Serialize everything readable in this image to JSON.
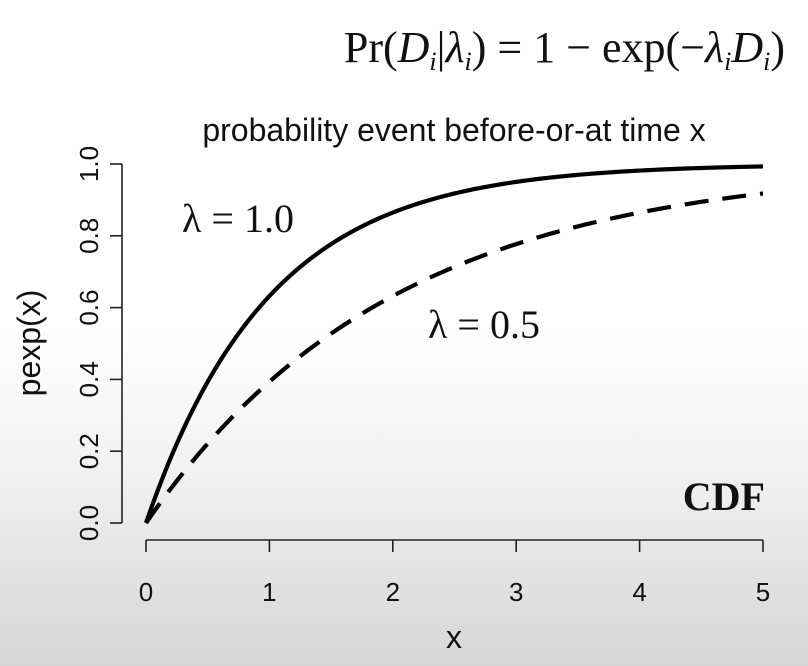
{
  "chart_data": {
    "type": "line",
    "formula": {
      "prefix": "Pr(",
      "d": "D",
      "sub_i_1": "i",
      "bar": "|",
      "lambda1": "λ",
      "sub_i_2": "i",
      "mid": ") = 1 − exp(−",
      "lambda2": "λ",
      "sub_i_3": "i",
      "d2": "D",
      "sub_i_4": "i",
      "suffix": ")"
    },
    "title": "probability event before-or-at time x",
    "xlabel": "x",
    "ylabel": "pexp(x)",
    "xlim": [
      0,
      5
    ],
    "ylim": [
      0,
      1
    ],
    "x_ticks": [
      0,
      1,
      2,
      3,
      4,
      5
    ],
    "x_tick_labels": [
      "0",
      "1",
      "2",
      "3",
      "4",
      "5"
    ],
    "y_ticks": [
      0,
      0.2,
      0.4,
      0.6,
      0.8,
      1.0
    ],
    "y_tick_labels": [
      "0.0",
      "0.2",
      "0.4",
      "0.6",
      "0.8",
      "1.0"
    ],
    "grid": false,
    "corner_label": "CDF",
    "series": [
      {
        "name": "λ = 1.0",
        "rate": 1.0,
        "style": "solid",
        "color": "#000000",
        "x": [
          0,
          0.25,
          0.5,
          0.75,
          1.0,
          1.5,
          2.0,
          2.5,
          3.0,
          3.5,
          4.0,
          4.5,
          5.0
        ],
        "y": [
          0,
          0.221,
          0.393,
          0.528,
          0.632,
          0.777,
          0.865,
          0.918,
          0.95,
          0.97,
          0.982,
          0.989,
          0.993
        ]
      },
      {
        "name": "λ = 0.5",
        "rate": 0.5,
        "style": "dashed",
        "color": "#000000",
        "x": [
          0,
          0.25,
          0.5,
          0.75,
          1.0,
          1.5,
          2.0,
          2.5,
          3.0,
          3.5,
          4.0,
          4.5,
          5.0
        ],
        "y": [
          0,
          0.118,
          0.221,
          0.313,
          0.393,
          0.528,
          0.632,
          0.713,
          0.777,
          0.826,
          0.865,
          0.895,
          0.918
        ]
      }
    ]
  }
}
